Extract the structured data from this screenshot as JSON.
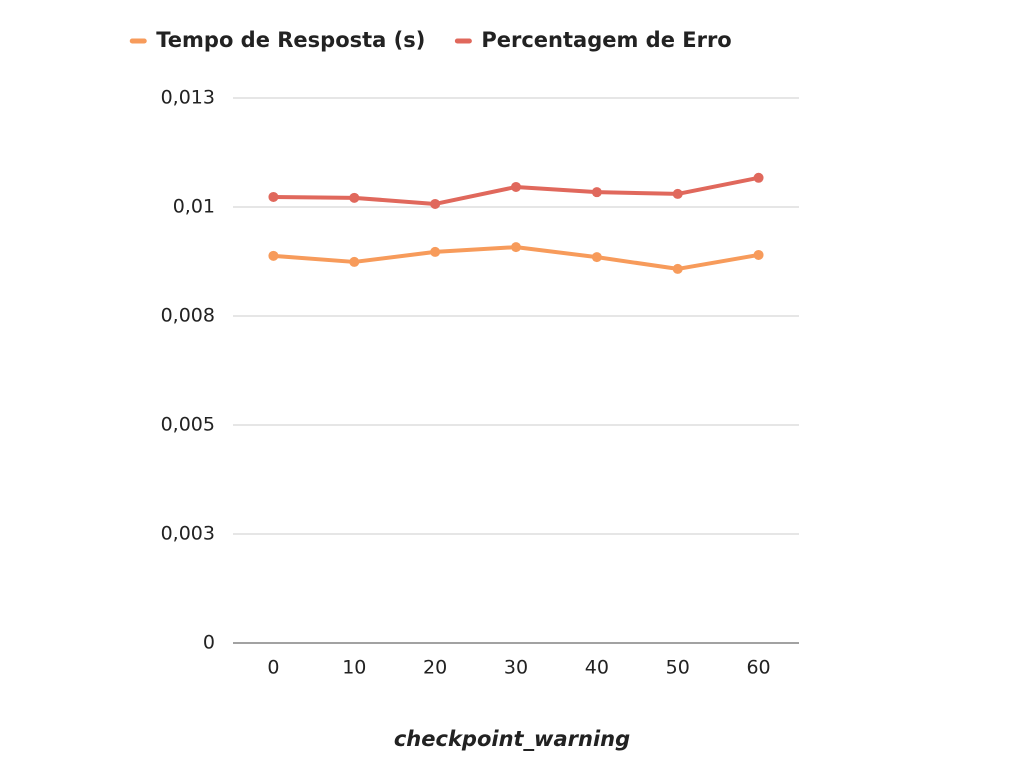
{
  "chart_data": {
    "type": "line",
    "x_label": "checkpoint_warning",
    "categories": [
      "0",
      "10",
      "20",
      "30",
      "40",
      "50",
      "60"
    ],
    "series": [
      {
        "name": "Tempo de Resposta (s)",
        "color": "#f79b5b",
        "values": [
          0.00888,
          0.00874,
          0.00897,
          0.00908,
          0.00885,
          0.00858,
          0.0089
        ]
      },
      {
        "name": "Percentagem de Erro",
        "color": "#e0685c",
        "values": [
          0.01023,
          0.01021,
          0.01007,
          0.01046,
          0.01034,
          0.0103,
          0.01067
        ]
      }
    ],
    "ylim": [
      0,
      0.0125
    ],
    "yticks": [
      0,
      {
        "value": 0.0025,
        "label": "0,003"
      },
      {
        "value": 0.005,
        "label": "0,005"
      },
      {
        "value": 0.0075,
        "label": "0,008"
      },
      {
        "value": 0.01,
        "label": "0,01"
      },
      {
        "value": 0.0125,
        "label": "0,013"
      }
    ],
    "grid": true,
    "legend": "top"
  }
}
